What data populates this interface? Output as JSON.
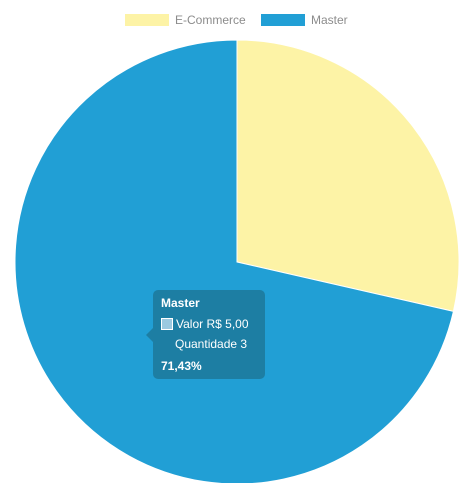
{
  "chart_data": {
    "type": "pie",
    "series": [
      {
        "name": "E-Commerce",
        "value": 28.57,
        "color": "#fdf3a6"
      },
      {
        "name": "Master",
        "value": 71.43,
        "color": "#219fd5"
      }
    ],
    "legend_position": "top",
    "tooltip": {
      "title": "Master",
      "valor_label": "Valor",
      "valor_value": "R$ 5,00",
      "quantidade_label": "Quantidade",
      "quantidade_value": "3",
      "percent": "71,43%"
    }
  }
}
